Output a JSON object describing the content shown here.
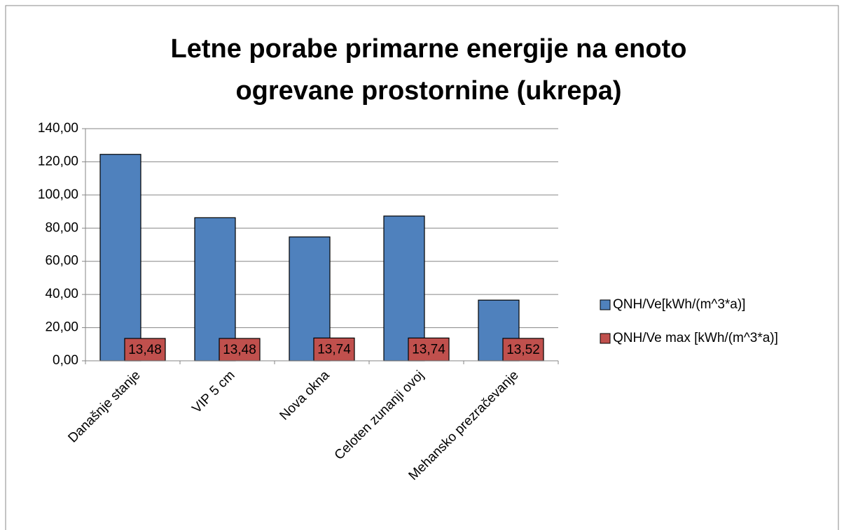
{
  "chart_data": {
    "type": "bar",
    "title": "Letne porabe primarne energije na enoto ogrevane prostornine (ukrepa)",
    "categories": [
      "Današnje stanje",
      "VIP 5 cm",
      "Nova okna",
      "Celoten zunanji ovoj",
      "Mehansko prezračevanje"
    ],
    "series": [
      {
        "name": "QNH/Ve[kWh/(m^3*a)]",
        "color": "#4f81bd",
        "values": [
          124.5,
          86.3,
          74.7,
          87.3,
          36.6
        ]
      },
      {
        "name": "QNH/Ve max [kWh/(m^3*a)]",
        "color": "#c0504d",
        "values": [
          13.48,
          13.48,
          13.74,
          13.74,
          13.52
        ],
        "value_labels": [
          "13,48",
          "13,48",
          "13,74",
          "13,74",
          "13,52"
        ]
      }
    ],
    "ylim": [
      0,
      140
    ],
    "yticks": [
      {
        "value": 0,
        "label": "0,00"
      },
      {
        "value": 20,
        "label": "20,00"
      },
      {
        "value": 40,
        "label": "40,00"
      },
      {
        "value": 60,
        "label": "60,00"
      },
      {
        "value": 80,
        "label": "80,00"
      },
      {
        "value": 100,
        "label": "100,00"
      },
      {
        "value": 120,
        "label": "120,00"
      },
      {
        "value": 140,
        "label": "140,00"
      }
    ],
    "grid": true,
    "legend": "right"
  }
}
